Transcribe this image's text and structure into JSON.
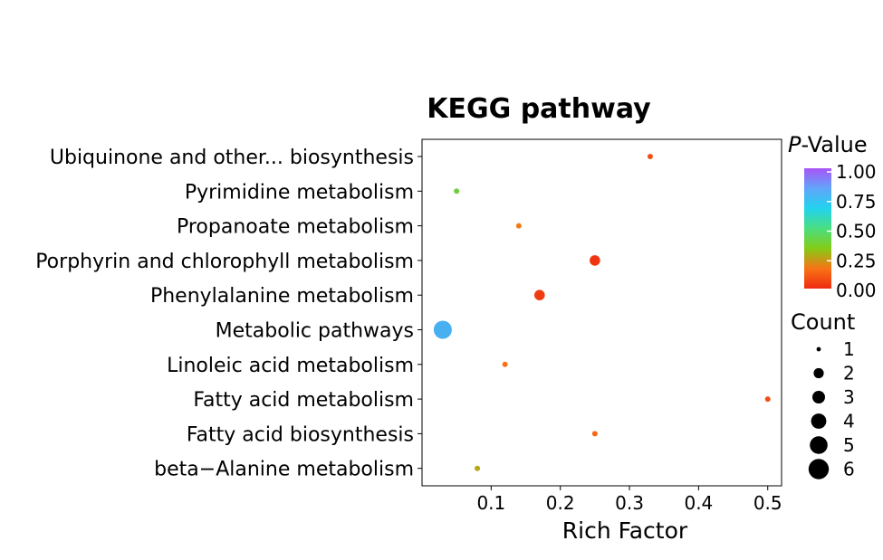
{
  "chart_data": {
    "type": "scatter",
    "title": "KEGG pathway",
    "xlabel": "Rich Factor",
    "ylabel": "",
    "xlim": [
      0.0,
      0.52
    ],
    "xticks": [
      0.1,
      0.2,
      0.3,
      0.4,
      0.5
    ],
    "xtick_labels": [
      "0.1",
      "0.2",
      "0.3",
      "0.4",
      "0.5"
    ],
    "categories": [
      "beta−Alanine metabolism",
      "Fatty acid biosynthesis",
      "Fatty acid metabolism",
      "Linoleic acid metabolism",
      "Metabolic pathways",
      "Phenylalanine metabolism",
      "Porphyrin and chlorophyll metabolism",
      "Propanoate metabolism",
      "Pyrimidine metabolism",
      "Ubiquinone and other... biosynthesis"
    ],
    "points": [
      {
        "category": "beta−Alanine metabolism",
        "rich_factor": 0.08,
        "count": 1,
        "p_value": 0.4
      },
      {
        "category": "Fatty acid biosynthesis",
        "rich_factor": 0.25,
        "count": 1,
        "p_value": 0.2
      },
      {
        "category": "Fatty acid metabolism",
        "rich_factor": 0.5,
        "count": 1,
        "p_value": 0.12
      },
      {
        "category": "Linoleic acid metabolism",
        "rich_factor": 0.12,
        "count": 1,
        "p_value": 0.25
      },
      {
        "category": "Metabolic pathways",
        "rich_factor": 0.03,
        "count": 6,
        "p_value": 0.82
      },
      {
        "category": "Phenylalanine metabolism",
        "rich_factor": 0.17,
        "count": 3,
        "p_value": 0.06
      },
      {
        "category": "Porphyrin and chlorophyll metabolism",
        "rich_factor": 0.25,
        "count": 3,
        "p_value": 0.03
      },
      {
        "category": "Propanoate metabolism",
        "rich_factor": 0.14,
        "count": 1,
        "p_value": 0.27
      },
      {
        "category": "Pyrimidine metabolism",
        "rich_factor": 0.05,
        "count": 1,
        "p_value": 0.55
      },
      {
        "category": "Ubiquinone and other... biosynthesis",
        "rich_factor": 0.33,
        "count": 1,
        "p_value": 0.13
      }
    ],
    "color_legend": {
      "title_italic": "P",
      "title_rest": "-Value",
      "ticks": [
        "1.00",
        "0.75",
        "0.50",
        "0.25",
        "0.00"
      ],
      "colors": [
        "#a855f7",
        "#60a5fa",
        "#22d3ee",
        "#4ade80",
        "#84cc16",
        "#f97316",
        "#ef2b10"
      ]
    },
    "size_legend": {
      "title": "Count",
      "values": [
        "1",
        "2",
        "3",
        "4",
        "5",
        "6"
      ]
    },
    "grid": false,
    "legend_position": "right"
  }
}
